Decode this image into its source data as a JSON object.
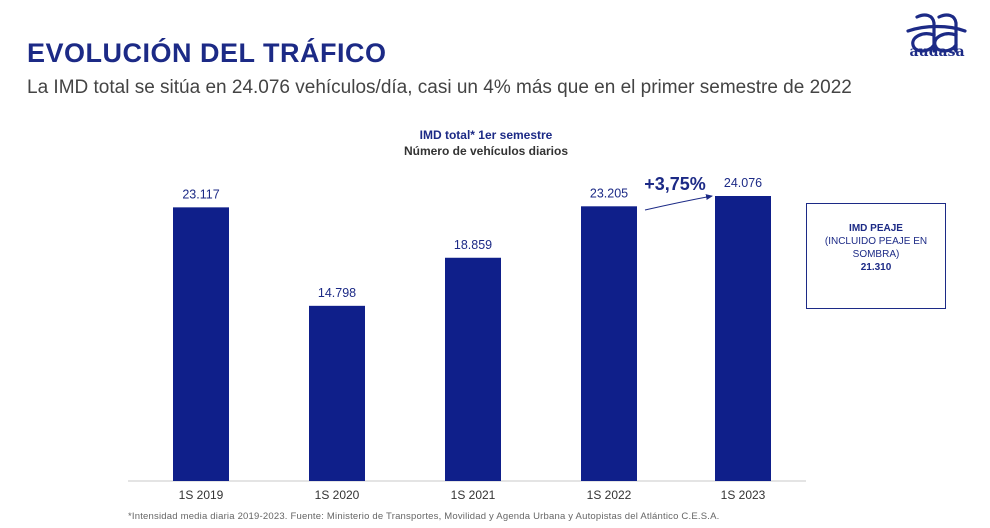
{
  "header": {
    "title": "EVOLUCIÓN DEL TRÁFICO",
    "subtitle": "La IMD total se sitúa en 24.076 vehículos/día, casi un 4% más que en el primer semestre de 2022"
  },
  "logo": {
    "icon": "aa-logo-icon",
    "word": "audasa"
  },
  "chart_data": {
    "type": "bar",
    "title": "IMD total* 1er semestre",
    "subtitle": "Número de vehículos diarios",
    "categories": [
      "1S 2019",
      "1S 2020",
      "1S 2021",
      "1S 2022",
      "1S 2023"
    ],
    "values": [
      23117,
      14798,
      18859,
      23205,
      24076
    ],
    "value_labels": [
      "23.117",
      "14.798",
      "18.859",
      "23.205",
      "24.076"
    ],
    "ylim": [
      0,
      24076
    ],
    "annotation": "+3,75%",
    "bar_color": "#0f1f8a"
  },
  "side_box": {
    "title": "IMD PEAJE",
    "note_line1": "(INCLUIDO PEAJE EN",
    "note_line2": "SOMBRA)",
    "value": "21.310"
  },
  "footnote": "*Intensidad media diaria 2019-2023. Fuente: Ministerio de Transportes, Movilidad y Agenda Urbana y Autopistas del Atlántico C.E.S.A."
}
